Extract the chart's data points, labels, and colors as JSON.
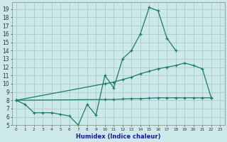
{
  "xlabel": "Humidex (Indice chaleur)",
  "color": "#1a7a6e",
  "bg_color": "#cce8e8",
  "grid_color": "#a8cccc",
  "ylim": [
    5,
    19.8
  ],
  "xlim": [
    -0.5,
    23.5
  ],
  "yticks": [
    5,
    6,
    7,
    8,
    9,
    10,
    11,
    12,
    13,
    14,
    15,
    16,
    17,
    18,
    19
  ],
  "xticks": [
    0,
    1,
    2,
    3,
    4,
    5,
    6,
    7,
    8,
    9,
    10,
    11,
    12,
    13,
    14,
    15,
    16,
    17,
    18,
    19,
    20,
    21,
    22,
    23
  ],
  "max_line_x": [
    0,
    1,
    2,
    3,
    4,
    5,
    6,
    7,
    8,
    9,
    10,
    11,
    12,
    13,
    14,
    15,
    16,
    17,
    18
  ],
  "max_line_y": [
    8.0,
    7.5,
    6.5,
    6.5,
    6.5,
    6.3,
    6.1,
    5.0,
    7.5,
    6.2,
    11.0,
    9.5,
    13.0,
    14.0,
    16.0,
    19.2,
    18.8,
    15.5,
    14.0
  ],
  "mid_line_x": [
    0,
    10,
    11,
    12,
    13,
    14,
    15,
    16,
    17,
    18,
    19,
    20,
    21,
    22
  ],
  "mid_line_y": [
    8.0,
    10.0,
    10.2,
    10.5,
    10.8,
    11.2,
    11.5,
    11.8,
    12.0,
    12.2,
    12.5,
    12.2,
    11.8,
    8.3
  ],
  "bot_line_x": [
    0,
    10,
    11,
    12,
    13,
    14,
    15,
    16,
    17,
    18,
    19,
    20,
    21,
    22
  ],
  "bot_line_y": [
    8.0,
    8.1,
    8.1,
    8.15,
    8.2,
    8.2,
    8.25,
    8.3,
    8.3,
    8.3,
    8.3,
    8.3,
    8.3,
    8.3
  ],
  "ytick_fontsize": 5.5,
  "xtick_fontsize": 4.2,
  "xlabel_fontsize": 6.0
}
